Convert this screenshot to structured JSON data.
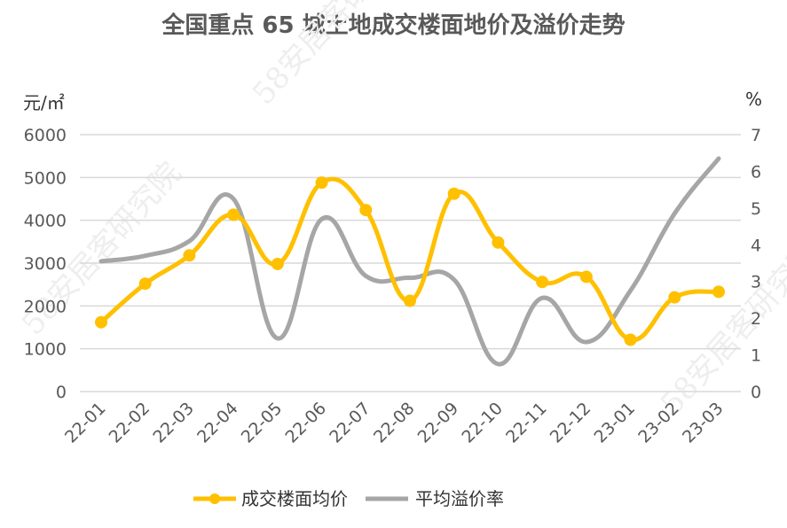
{
  "chart_data": {
    "type": "line",
    "title": "全国重点 65 城土地成交楼面地价及溢价走势",
    "ylabel": "元/㎡",
    "y2label": "%",
    "ylim": [
      0,
      6000
    ],
    "y2lim": [
      0,
      7
    ],
    "yticks": [
      "0",
      "1000",
      "2000",
      "3000",
      "4000",
      "5000",
      "6000"
    ],
    "y2ticks": [
      "0",
      "1",
      "2",
      "3",
      "4",
      "5",
      "6",
      "7"
    ],
    "categories": [
      "22-01",
      "22-02",
      "22-03",
      "22-04",
      "22-05",
      "22-06",
      "22-07",
      "22-08",
      "22-09",
      "22-10",
      "22-11",
      "22-12",
      "23-01",
      "23-02",
      "23-03"
    ],
    "series": [
      {
        "name": "成交楼面均价",
        "axis": "left",
        "color": "#FFC000",
        "marker": "circle",
        "values": [
          1620,
          2520,
          3180,
          4130,
          2980,
          4880,
          4240,
          2120,
          4620,
          3480,
          2560,
          2680,
          1210,
          2200,
          2330
        ]
      },
      {
        "name": "平均溢价率",
        "axis": "right",
        "color": "#A6A6A6",
        "marker": "none",
        "values": [
          3.55,
          3.7,
          4.1,
          5.25,
          1.45,
          4.7,
          3.15,
          3.1,
          3.05,
          0.75,
          2.55,
          1.35,
          2.75,
          4.85,
          6.35
        ]
      }
    ],
    "grid": true,
    "legend": "bottom-center"
  },
  "watermarks": [
    "58安居客研究院",
    "58安居客研究院",
    "58安居客研究院"
  ]
}
